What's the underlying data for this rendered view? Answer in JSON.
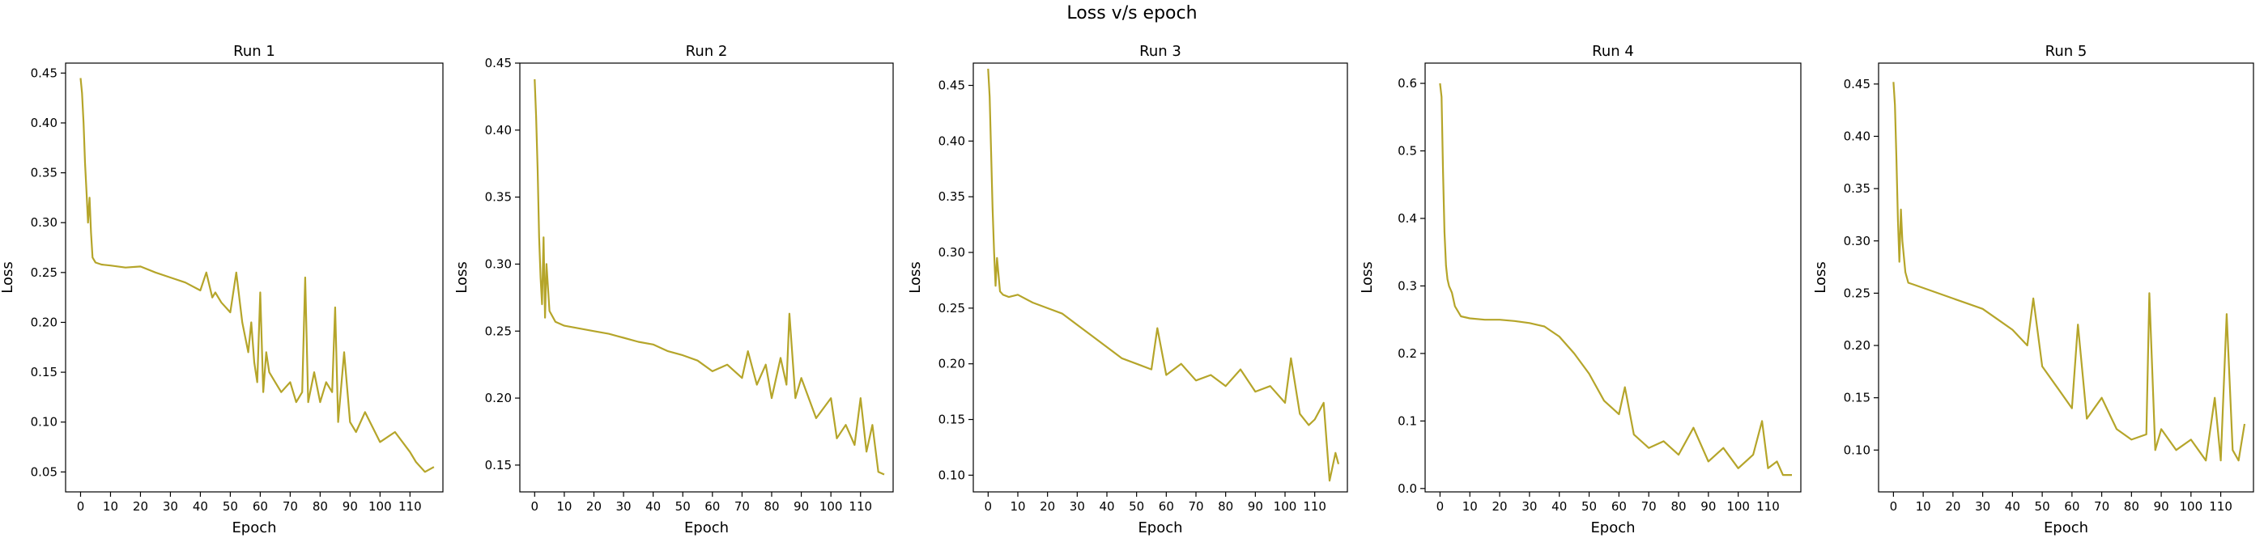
{
  "chart_data": {
    "suptitle": "Loss v/s epoch",
    "type": "line",
    "line_color": "#b5a52a",
    "subplots": [
      {
        "title": "Run 1",
        "xlabel": "Epoch",
        "ylabel": "Loss",
        "xlim": [
          -5,
          121
        ],
        "ylim": [
          0.03,
          0.46
        ],
        "xticks": [
          0,
          10,
          20,
          30,
          40,
          50,
          60,
          70,
          80,
          90,
          100,
          110
        ],
        "yticks": [
          0.05,
          0.1,
          0.15,
          0.2,
          0.25,
          0.3,
          0.35,
          0.4,
          0.45
        ],
        "ytick_labels": [
          "0.05",
          "0.10",
          "0.15",
          "0.20",
          "0.25",
          "0.30",
          "0.35",
          "0.40",
          "0.45"
        ],
        "x": [
          0,
          0.5,
          1,
          1.5,
          2,
          2.5,
          3,
          3.5,
          4,
          5,
          7,
          10,
          15,
          20,
          25,
          30,
          35,
          40,
          42,
          44,
          45,
          47,
          50,
          52,
          54,
          56,
          57,
          58,
          59,
          60,
          61,
          62,
          63,
          65,
          67,
          70,
          72,
          74,
          75,
          76,
          78,
          80,
          82,
          84,
          85,
          86,
          88,
          90,
          92,
          95,
          100,
          105,
          110,
          112,
          115,
          118
        ],
        "y": [
          0.445,
          0.43,
          0.4,
          0.36,
          0.33,
          0.3,
          0.325,
          0.29,
          0.265,
          0.26,
          0.258,
          0.257,
          0.255,
          0.256,
          0.25,
          0.245,
          0.24,
          0.232,
          0.25,
          0.225,
          0.23,
          0.22,
          0.21,
          0.25,
          0.2,
          0.17,
          0.2,
          0.16,
          0.14,
          0.23,
          0.13,
          0.17,
          0.15,
          0.14,
          0.13,
          0.14,
          0.12,
          0.13,
          0.245,
          0.12,
          0.15,
          0.12,
          0.14,
          0.13,
          0.215,
          0.1,
          0.17,
          0.1,
          0.09,
          0.11,
          0.08,
          0.09,
          0.07,
          0.06,
          0.05,
          0.055
        ]
      },
      {
        "title": "Run 2",
        "xlabel": "Epoch",
        "ylabel": "Loss",
        "xlim": [
          -5,
          121
        ],
        "ylim": [
          0.13,
          0.45
        ],
        "xticks": [
          0,
          10,
          20,
          30,
          40,
          50,
          60,
          70,
          80,
          90,
          100,
          110
        ],
        "yticks": [
          0.15,
          0.2,
          0.25,
          0.3,
          0.35,
          0.4,
          0.45
        ],
        "ytick_labels": [
          "0.15",
          "0.20",
          "0.25",
          "0.30",
          "0.35",
          "0.40",
          "0.45"
        ],
        "x": [
          0,
          0.5,
          1,
          1.5,
          2,
          2.5,
          3,
          3.5,
          4,
          5,
          7,
          10,
          15,
          20,
          25,
          30,
          35,
          40,
          45,
          50,
          55,
          60,
          65,
          70,
          72,
          75,
          78,
          80,
          83,
          85,
          86,
          88,
          90,
          95,
          100,
          102,
          105,
          108,
          110,
          112,
          114,
          116,
          118
        ],
        "y": [
          0.438,
          0.41,
          0.37,
          0.32,
          0.29,
          0.27,
          0.32,
          0.26,
          0.3,
          0.265,
          0.257,
          0.254,
          0.252,
          0.25,
          0.248,
          0.245,
          0.242,
          0.24,
          0.235,
          0.232,
          0.228,
          0.22,
          0.225,
          0.215,
          0.235,
          0.21,
          0.225,
          0.2,
          0.23,
          0.21,
          0.263,
          0.2,
          0.215,
          0.185,
          0.2,
          0.17,
          0.18,
          0.165,
          0.2,
          0.16,
          0.18,
          0.145,
          0.143
        ]
      },
      {
        "title": "Run 3",
        "xlabel": "Epoch",
        "ylabel": "Loss",
        "xlim": [
          -5,
          121
        ],
        "ylim": [
          0.085,
          0.47
        ],
        "xticks": [
          0,
          10,
          20,
          30,
          40,
          50,
          60,
          70,
          80,
          90,
          100,
          110
        ],
        "yticks": [
          0.1,
          0.15,
          0.2,
          0.25,
          0.3,
          0.35,
          0.4,
          0.45
        ],
        "ytick_labels": [
          "0.10",
          "0.15",
          "0.20",
          "0.25",
          "0.30",
          "0.35",
          "0.40",
          "0.45"
        ],
        "x": [
          0,
          0.5,
          1,
          1.5,
          2,
          2.5,
          3,
          4,
          5,
          7,
          10,
          15,
          20,
          25,
          30,
          35,
          40,
          45,
          50,
          55,
          57,
          60,
          65,
          70,
          75,
          80,
          85,
          90,
          95,
          100,
          102,
          105,
          108,
          110,
          113,
          115,
          117,
          118
        ],
        "y": [
          0.465,
          0.44,
          0.39,
          0.34,
          0.3,
          0.27,
          0.295,
          0.265,
          0.262,
          0.26,
          0.262,
          0.255,
          0.25,
          0.245,
          0.235,
          0.225,
          0.215,
          0.205,
          0.2,
          0.195,
          0.232,
          0.19,
          0.2,
          0.185,
          0.19,
          0.18,
          0.195,
          0.175,
          0.18,
          0.165,
          0.205,
          0.155,
          0.145,
          0.15,
          0.165,
          0.095,
          0.12,
          0.11
        ]
      },
      {
        "title": "Run 4",
        "xlabel": "Epoch",
        "ylabel": "Loss",
        "xlim": [
          -5,
          121
        ],
        "ylim": [
          -0.005,
          0.63
        ],
        "xticks": [
          0,
          10,
          20,
          30,
          40,
          50,
          60,
          70,
          80,
          90,
          100,
          110
        ],
        "yticks": [
          0.0,
          0.1,
          0.2,
          0.3,
          0.4,
          0.5,
          0.6
        ],
        "ytick_labels": [
          "0.0",
          "0.1",
          "0.2",
          "0.3",
          "0.4",
          "0.5",
          "0.6"
        ],
        "x": [
          0,
          0.5,
          1,
          1.5,
          2,
          2.5,
          3,
          4,
          5,
          7,
          10,
          15,
          20,
          25,
          30,
          35,
          40,
          45,
          50,
          55,
          60,
          62,
          65,
          70,
          75,
          80,
          85,
          90,
          95,
          100,
          105,
          108,
          110,
          113,
          115,
          118
        ],
        "y": [
          0.6,
          0.58,
          0.47,
          0.38,
          0.33,
          0.31,
          0.3,
          0.29,
          0.27,
          0.255,
          0.252,
          0.25,
          0.25,
          0.248,
          0.245,
          0.24,
          0.225,
          0.2,
          0.17,
          0.13,
          0.11,
          0.15,
          0.08,
          0.06,
          0.07,
          0.05,
          0.09,
          0.04,
          0.06,
          0.03,
          0.05,
          0.1,
          0.03,
          0.04,
          0.02,
          0.02
        ]
      },
      {
        "title": "Run 5",
        "xlabel": "Epoch",
        "ylabel": "Loss",
        "xlim": [
          -5,
          121
        ],
        "ylim": [
          0.06,
          0.47
        ],
        "xticks": [
          0,
          10,
          20,
          30,
          40,
          50,
          60,
          70,
          80,
          90,
          100,
          110
        ],
        "yticks": [
          0.1,
          0.15,
          0.2,
          0.25,
          0.3,
          0.35,
          0.4,
          0.45
        ],
        "ytick_labels": [
          "0.10",
          "0.15",
          "0.20",
          "0.25",
          "0.30",
          "0.35",
          "0.40",
          "0.45"
        ],
        "x": [
          0,
          0.5,
          1,
          1.5,
          2,
          2.5,
          3,
          4,
          5,
          7,
          10,
          15,
          20,
          25,
          30,
          35,
          40,
          45,
          47,
          50,
          55,
          60,
          62,
          65,
          70,
          75,
          80,
          85,
          86,
          88,
          90,
          95,
          100,
          105,
          108,
          110,
          112,
          114,
          116,
          118
        ],
        "y": [
          0.452,
          0.43,
          0.38,
          0.32,
          0.28,
          0.33,
          0.3,
          0.27,
          0.26,
          0.258,
          0.255,
          0.25,
          0.245,
          0.24,
          0.235,
          0.225,
          0.215,
          0.2,
          0.245,
          0.18,
          0.16,
          0.14,
          0.22,
          0.13,
          0.15,
          0.12,
          0.11,
          0.115,
          0.25,
          0.1,
          0.12,
          0.1,
          0.11,
          0.09,
          0.15,
          0.09,
          0.23,
          0.1,
          0.09,
          0.125
        ]
      }
    ]
  }
}
